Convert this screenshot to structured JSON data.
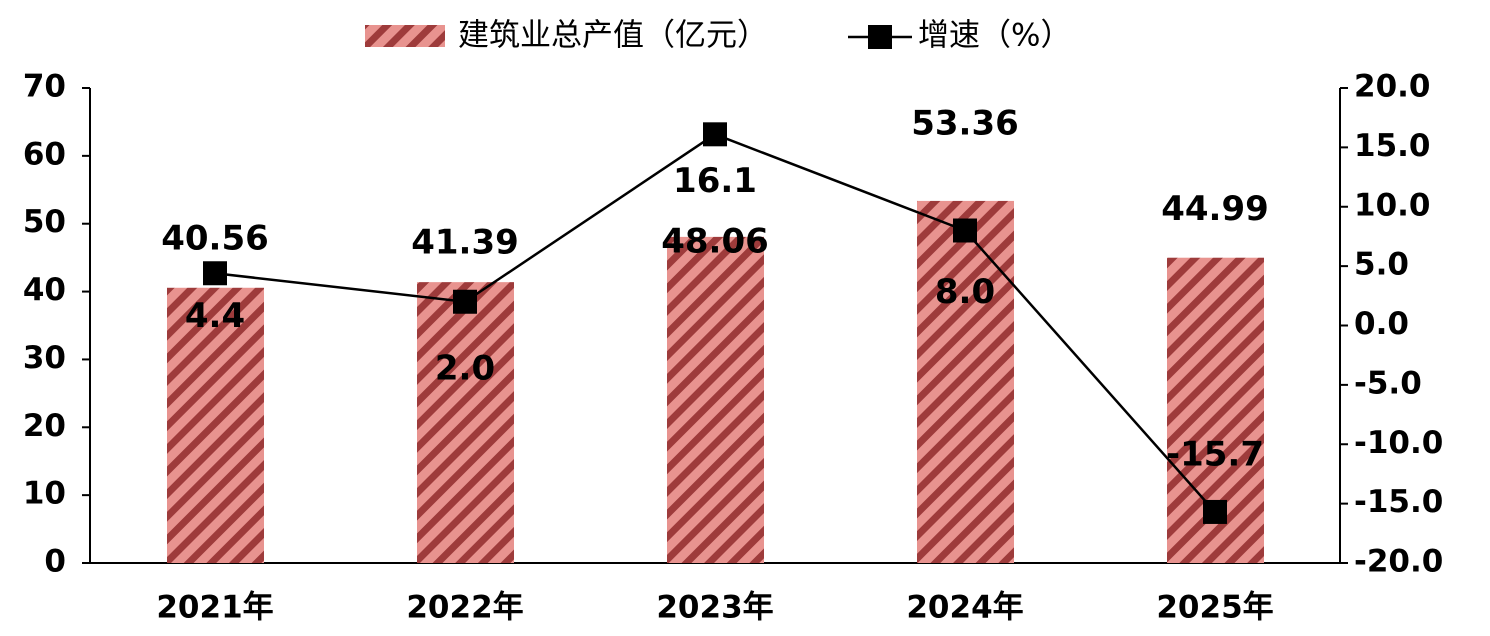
{
  "chart_data": {
    "type": "bar",
    "categories": [
      "2021年",
      "2022年",
      "2023年",
      "2024年",
      "2025年"
    ],
    "series": [
      {
        "name": "建筑业总产值（亿元）",
        "type": "bar",
        "color": "#e8938f",
        "hatch_color": "#9e3b3b",
        "values": [
          40.56,
          41.39,
          48.06,
          53.36,
          44.99
        ]
      },
      {
        "name": "增速（%）",
        "type": "line",
        "axis": "y2",
        "color": "#000000",
        "values": [
          4.4,
          2.0,
          16.1,
          8.0,
          -15.7
        ],
        "value_labels": [
          "4.4",
          "2.0",
          "16.1",
          "8.0",
          "-15.7"
        ]
      }
    ],
    "ylim": [
      0,
      70
    ],
    "yticks": [
      0,
      10,
      20,
      30,
      40,
      50,
      60,
      70
    ],
    "y2lim": [
      -20,
      20
    ],
    "y2ticks": [
      {
        "value": -20,
        "label": "-20.0"
      },
      {
        "value": -15,
        "label": "-15.0"
      },
      {
        "value": -10,
        "label": "-10.0"
      },
      {
        "value": -5,
        "label": "-5.0"
      },
      {
        "value": 0,
        "label": "0.0"
      },
      {
        "value": 5,
        "label": "5.0"
      },
      {
        "value": 10,
        "label": "10.0"
      },
      {
        "value": 15,
        "label": "15.0"
      },
      {
        "value": 20,
        "label": "20.0"
      }
    ],
    "legend": "top",
    "grid": false
  }
}
